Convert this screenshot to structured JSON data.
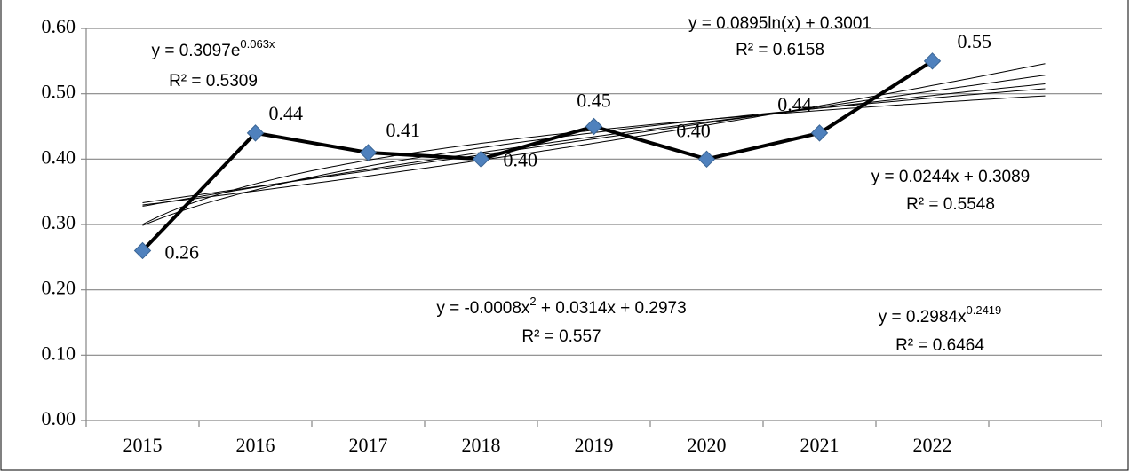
{
  "chart_data": {
    "type": "line",
    "categories": [
      "2015",
      "2016",
      "2017",
      "2018",
      "2019",
      "2020",
      "2021",
      "2022",
      null
    ],
    "series": [
      {
        "color": "#000000",
        "marker_color": "#4f81bd",
        "values": [
          0.26,
          0.44,
          0.41,
          0.4,
          0.45,
          0.4,
          0.44,
          0.55,
          null
        ],
        "value_labels": [
          "0.26",
          "0.44",
          "0.41",
          "0.40",
          "0.45",
          "0.40",
          "0.44",
          "0.55",
          null
        ]
      }
    ],
    "ylim": [
      0,
      0.6
    ],
    "yticks": [
      {
        "value": 0,
        "label": "0.00"
      },
      {
        "value": 0.1,
        "label": "0.10"
      },
      {
        "value": 0.2,
        "label": "0.20"
      },
      {
        "value": 0.3,
        "label": "0.30"
      },
      {
        "value": 0.4,
        "label": "0.40"
      },
      {
        "value": 0.5,
        "label": "0.50"
      },
      {
        "value": 0.6,
        "label": "0.60"
      }
    ],
    "grid": true,
    "trendlines": [
      {
        "kind": "exponential",
        "coefficients": [
          0.3097,
          0.063
        ],
        "equation": [
          "y = 0.3097e",
          "0.063x"
        ],
        "r2": "R² = 0.5309"
      },
      {
        "kind": "logarithmic",
        "coefficients": [
          0.0895,
          0.3001
        ],
        "equation": [
          "y = 0.0895ln(x) + 0.3001"
        ],
        "r2": "R² = 0.6158"
      },
      {
        "kind": "linear",
        "coefficients": [
          0.0244,
          0.3089
        ],
        "equation": [
          "y = 0.0244x + 0.3089"
        ],
        "r2": "R² = 0.5548"
      },
      {
        "kind": "polynomial",
        "coefficients": [
          -0.0008,
          0.0314,
          0.2973
        ],
        "equation": [
          "y = -0.0008x",
          "2",
          " + 0.0314x + 0.2973"
        ],
        "r2": "R² = 0.557"
      },
      {
        "kind": "power",
        "coefficients": [
          0.2984,
          0.2419
        ],
        "equation": [
          "y = 0.2984x",
          "0.2419"
        ],
        "r2": "R² = 0.6464"
      }
    ],
    "trend_x_range": [
      1,
      9
    ]
  }
}
